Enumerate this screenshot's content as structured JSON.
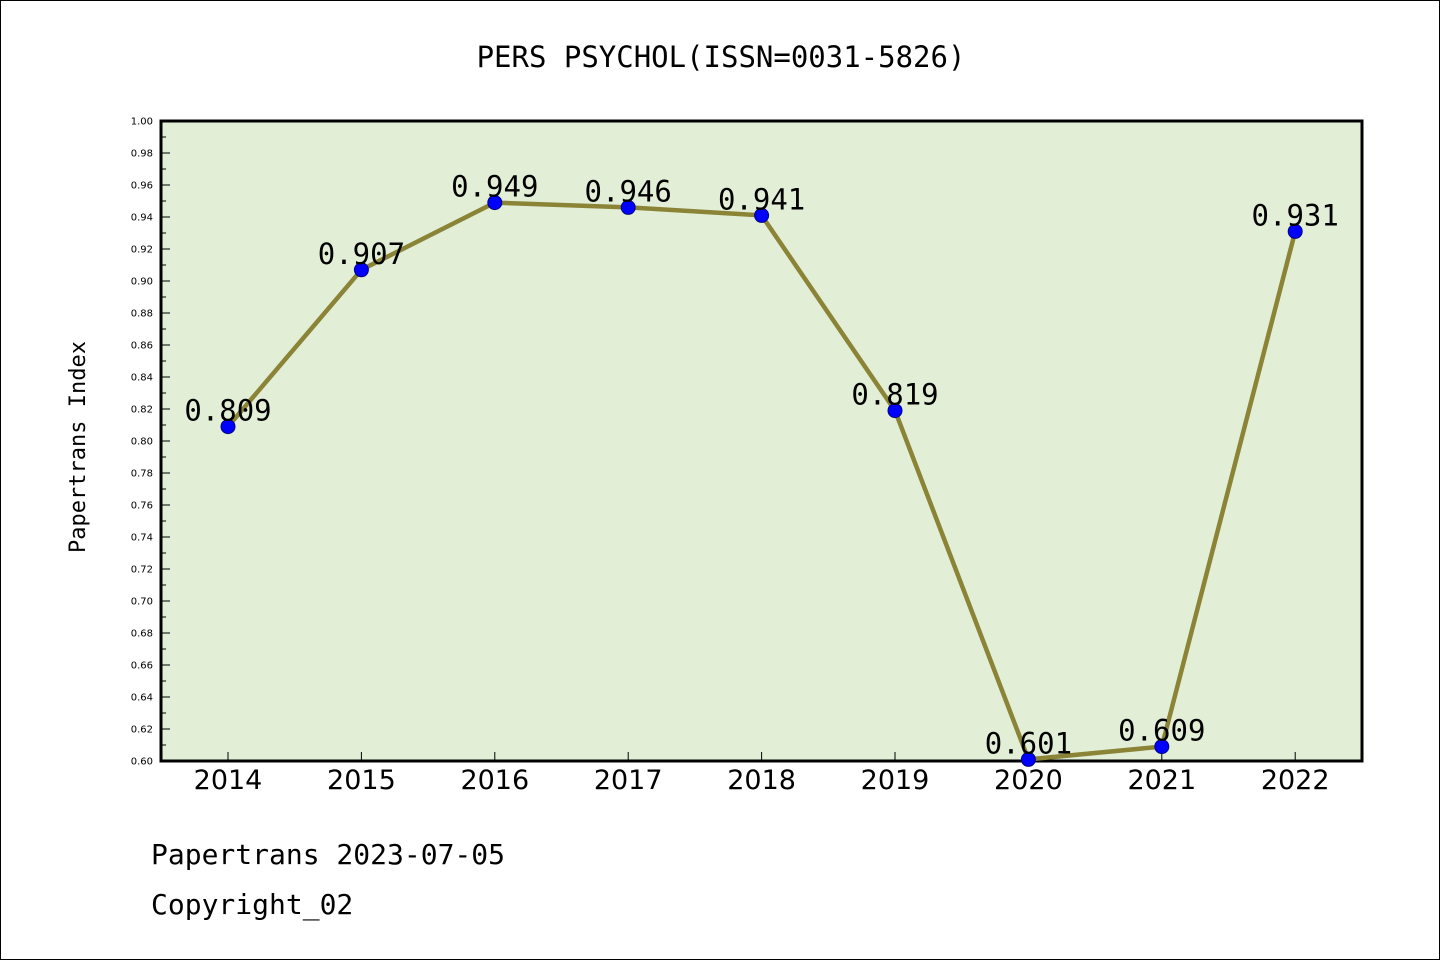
{
  "chart_data": {
    "type": "line",
    "title": "PERS PSYCHOL(ISSN=0031-5826)",
    "xlabel": "",
    "ylabel": "Papertrans Index",
    "categories": [
      "2014",
      "2015",
      "2016",
      "2017",
      "2018",
      "2019",
      "2020",
      "2021",
      "2022"
    ],
    "values": [
      0.809,
      0.907,
      0.949,
      0.946,
      0.941,
      0.819,
      0.601,
      0.609,
      0.931
    ],
    "data_labels": [
      "0.809",
      "0.907",
      "0.949",
      "0.946",
      "0.941",
      "0.819",
      "0.601",
      "0.609",
      "0.931"
    ],
    "ylim": [
      0.6,
      1.0
    ],
    "yticks": [
      "0.60",
      "0.62",
      "0.64",
      "0.66",
      "0.68",
      "0.70",
      "0.72",
      "0.74",
      "0.76",
      "0.78",
      "0.80",
      "0.82",
      "0.84",
      "0.86",
      "0.88",
      "0.90",
      "0.92",
      "0.94",
      "0.96",
      "0.98",
      "1.00"
    ],
    "grid": false,
    "legend": "none",
    "colors": {
      "plot_background": "#e2efd6",
      "line": "#8b8437",
      "marker": "#0000ff",
      "marker_edge": "#000080"
    }
  },
  "footer": {
    "line1": "Papertrans 2023-07-05",
    "line2": "Copyright_02"
  }
}
